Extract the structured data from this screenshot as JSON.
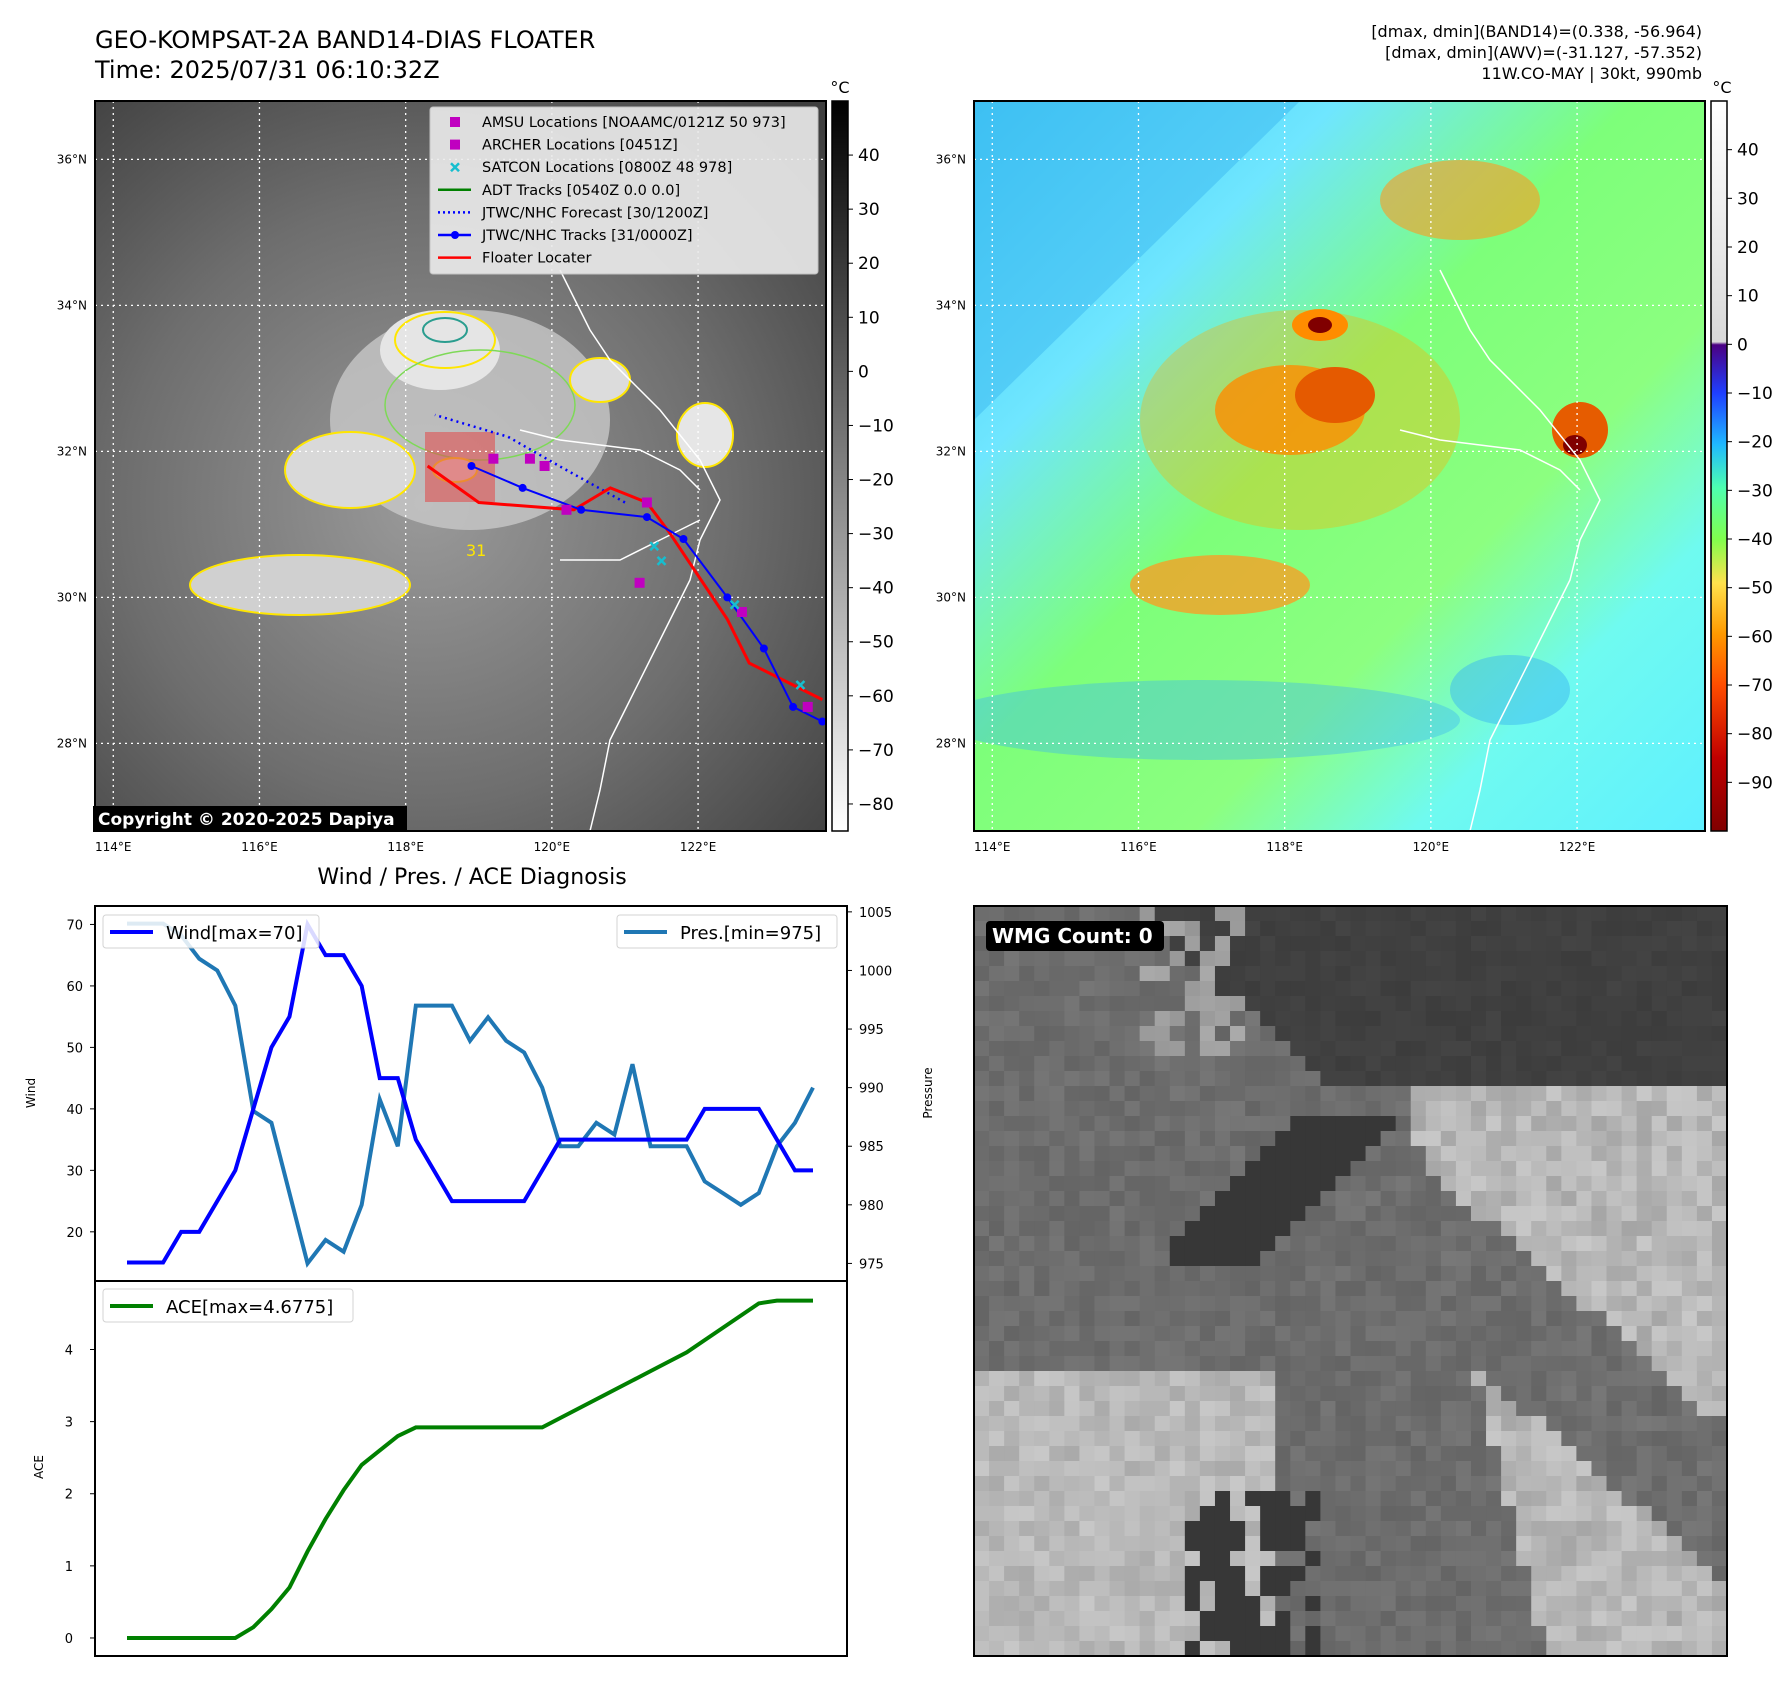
{
  "header": {
    "title": "GEO-KOMPSAT-2A BAND14-DIAS FLOATER",
    "time": "Time: 2025/07/31 06:10:32Z",
    "info_line1": "[dmax, dmin](BAND14)=(0.338, -56.964)",
    "info_line2": "[dmax, dmin](AWV)=(-31.127, -57.352)",
    "info_line3": "11W.CO-MAY | 30kt, 990mb"
  },
  "map": {
    "lat_labels": [
      "36°N",
      "34°N",
      "32°N",
      "30°N",
      "28°N"
    ],
    "lat_values": [
      36,
      34,
      32,
      30,
      28
    ],
    "lon_labels": [
      "114°E",
      "116°E",
      "118°E",
      "120°E",
      "122°E"
    ],
    "lon_values": [
      114,
      116,
      118,
      120,
      122
    ],
    "lon_range": [
      113.75,
      123.75
    ],
    "lat_range": [
      26.8,
      36.8
    ],
    "copyright": "Copyright © 2020-2025 Dapiya",
    "legend": [
      {
        "label": "AMSU Locations [NOAAMC/0121Z 50 973]",
        "marker": "square",
        "color": "#c000c0"
      },
      {
        "label": "ARCHER Locations [0451Z]",
        "marker": "square",
        "color": "#c000c0"
      },
      {
        "label": "SATCON Locations [0800Z 48 978]",
        "marker": "x",
        "color": "#17becf"
      },
      {
        "label": "ADT Tracks [0540Z 0.0 0.0]",
        "marker": "line",
        "color": "#008000"
      },
      {
        "label": "JTWC/NHC Forecast [30/1200Z]",
        "marker": "dotted",
        "color": "#0000ff"
      },
      {
        "label": "JTWC/NHC Tracks [31/0000Z]",
        "marker": "line-dot",
        "color": "#0000ff"
      },
      {
        "label": "Floater Locater",
        "marker": "line",
        "color": "#ff0000"
      }
    ],
    "jtwc_track": [
      [
        123.7,
        28.3
      ],
      [
        123.3,
        28.5
      ],
      [
        122.9,
        29.3
      ],
      [
        122.4,
        30.0
      ],
      [
        121.8,
        30.8
      ],
      [
        121.3,
        31.1
      ],
      [
        120.4,
        31.2
      ],
      [
        119.6,
        31.5
      ],
      [
        118.9,
        31.8
      ]
    ],
    "jtwc_forecast": [
      [
        121.0,
        31.3
      ],
      [
        120.1,
        31.8
      ],
      [
        119.4,
        32.2
      ],
      [
        118.4,
        32.5
      ]
    ],
    "floater_track": [
      [
        123.7,
        28.6
      ],
      [
        123.3,
        28.8
      ],
      [
        122.7,
        29.1
      ],
      [
        122.4,
        29.7
      ],
      [
        122.0,
        30.3
      ],
      [
        121.6,
        30.9
      ],
      [
        121.3,
        31.3
      ],
      [
        120.8,
        31.5
      ],
      [
        120.3,
        31.2
      ],
      [
        119.0,
        31.3
      ],
      [
        118.3,
        31.8
      ]
    ],
    "amsu_points": [
      [
        123.5,
        28.5
      ],
      [
        122.6,
        29.8
      ],
      [
        121.2,
        30.2
      ],
      [
        120.2,
        31.2
      ],
      [
        119.9,
        31.8
      ],
      [
        119.7,
        31.9
      ],
      [
        119.2,
        31.9
      ],
      [
        121.3,
        31.3
      ]
    ],
    "satcon_points": [
      [
        123.4,
        28.8
      ],
      [
        122.5,
        29.9
      ],
      [
        121.4,
        30.7
      ],
      [
        121.5,
        30.5
      ]
    ],
    "place_label": "31"
  },
  "colorbar_left": {
    "unit": "°C",
    "ticks": [
      "40",
      "30",
      "20",
      "10",
      "0",
      "−10",
      "−20",
      "−30",
      "−40",
      "−50",
      "−60",
      "−70",
      "−80"
    ],
    "tick_values": [
      40,
      30,
      20,
      10,
      0,
      -10,
      -20,
      -30,
      -40,
      -50,
      -60,
      -70,
      -80
    ],
    "range": [
      -85,
      50
    ]
  },
  "colorbar_right": {
    "unit": "°C",
    "ticks": [
      "40",
      "30",
      "20",
      "10",
      "0",
      "−10",
      "−20",
      "−30",
      "−40",
      "−50",
      "−60",
      "−70",
      "−80",
      "−90"
    ],
    "tick_values": [
      40,
      30,
      20,
      10,
      0,
      -10,
      -20,
      -30,
      -40,
      -50,
      -60,
      -70,
      -80,
      -90
    ],
    "range": [
      -100,
      50
    ]
  },
  "diag": {
    "title": "Wind / Pres. / ACE Diagnosis",
    "ylabel_wind": "Wind",
    "ylabel_pres": "Pressure",
    "ylabel_ace": "ACE",
    "legend_wind": "Wind[max=70]",
    "legend_pres": "Pres.[min=975]",
    "legend_ace": "ACE[max=4.6775]",
    "wind_color": "#0000ff",
    "pres_color": "#1f77b4",
    "ace_color": "#008000"
  },
  "chart_data": [
    {
      "type": "line",
      "xlabel": "",
      "ylabel": "Wind",
      "ylim": [
        12,
        73
      ],
      "yticks": [
        20,
        30,
        40,
        50,
        60,
        70
      ],
      "series": [
        {
          "name": "Wind[max=70]",
          "axis": "left",
          "values": [
            15,
            15,
            15,
            20,
            20,
            25,
            30,
            40,
            50,
            55,
            70,
            65,
            65,
            60,
            45,
            45,
            35,
            30,
            25,
            25,
            25,
            25,
            25,
            30,
            35,
            35,
            35,
            35,
            35,
            35,
            35,
            35,
            40,
            40,
            40,
            40,
            35,
            30,
            30
          ]
        },
        {
          "name": "Pres.[min=975]",
          "axis": "right",
          "values": [
            1004,
            1004,
            1004,
            1003,
            1001,
            1000,
            997,
            988,
            987,
            981,
            975,
            977,
            976,
            980,
            989,
            985,
            997,
            997,
            997,
            994,
            996,
            994,
            993,
            990,
            985,
            985,
            987,
            986,
            992,
            985,
            985,
            985,
            982,
            981,
            980,
            981,
            985,
            987,
            990
          ]
        }
      ],
      "y2label": "Pressure",
      "y2lim": [
        973.5,
        1005.5
      ],
      "y2ticks": [
        975,
        980,
        985,
        990,
        995,
        1000,
        1005
      ]
    },
    {
      "type": "line",
      "ylabel": "ACE",
      "ylim": [
        -0.25,
        4.95
      ],
      "yticks": [
        0,
        1,
        2,
        3,
        4
      ],
      "series": [
        {
          "name": "ACE[max=4.6775]",
          "values": [
            0,
            0,
            0,
            0,
            0,
            0,
            0,
            0.15,
            0.4,
            0.7,
            1.2,
            1.65,
            2.05,
            2.4,
            2.6,
            2.8,
            2.92,
            2.92,
            2.92,
            2.92,
            2.92,
            2.92,
            2.92,
            2.92,
            3.05,
            3.18,
            3.31,
            3.44,
            3.57,
            3.7,
            3.83,
            3.96,
            4.13,
            4.3,
            4.47,
            4.64,
            4.6775,
            4.6775,
            4.6775
          ]
        }
      ]
    }
  ],
  "wmg": {
    "label": "WMG Count: 0"
  }
}
